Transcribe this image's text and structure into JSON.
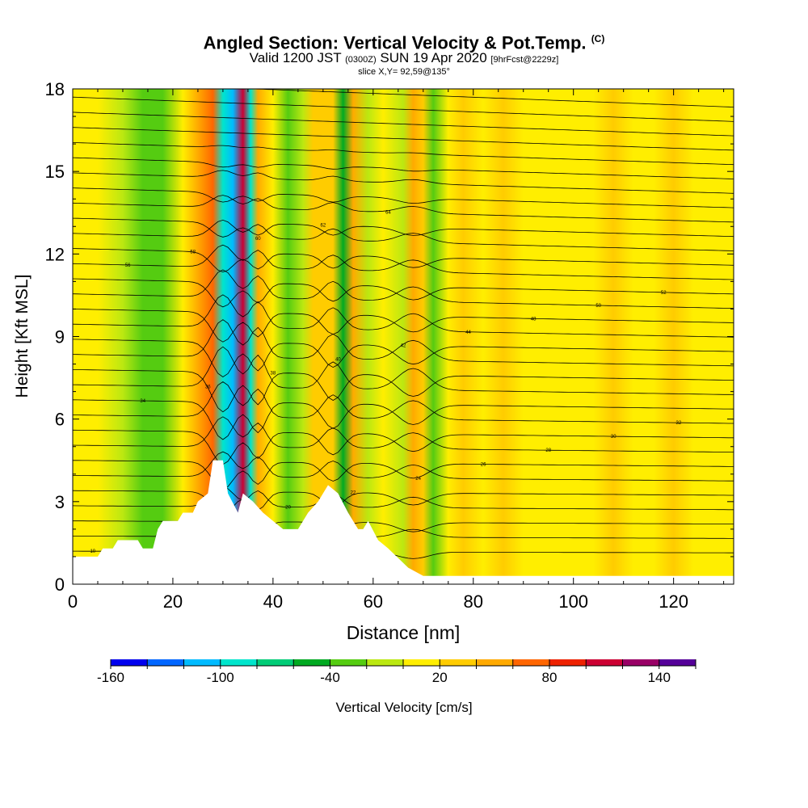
{
  "title": {
    "main": "Angled Section: Vertical Velocity & Pot.Temp.",
    "main_suffix": "(C)",
    "valid_prefix": "Valid 1200 JST",
    "valid_utc": "(0300Z)",
    "valid_date": "SUN 19 Apr 2020",
    "valid_fcst": "[9hrFcst@2229z]",
    "slice": "slice X,Y= 92,59@135°"
  },
  "chart_data": {
    "type": "heatmap",
    "xlabel": "Distance [nm]",
    "ylabel": "Height [Kft MSL]",
    "xlim": [
      0,
      132
    ],
    "ylim": [
      0,
      18
    ],
    "x_ticks": [
      "0",
      "20",
      "40",
      "60",
      "80",
      "100",
      "120"
    ],
    "y_ticks": [
      "0",
      "3",
      "6",
      "9",
      "12",
      "15",
      "18"
    ],
    "colorbar": {
      "label": "Vertical Velocity [cm/s]",
      "tick_labels": [
        "-160",
        "-100",
        "-40",
        "20",
        "80",
        "140"
      ],
      "tick_values": [
        -160,
        -100,
        -40,
        20,
        80,
        140
      ],
      "range": [
        -160,
        160
      ],
      "colors": [
        "#0000ee",
        "#0066ff",
        "#00bbff",
        "#00e5cc",
        "#00cc77",
        "#00aa22",
        "#55cc11",
        "#bbe811",
        "#ffee00",
        "#ffcc00",
        "#ffaa00",
        "#ff6600",
        "#ee2200",
        "#cc0033",
        "#990066",
        "#550099"
      ]
    },
    "vertical_velocity_bands": [
      {
        "x": 0,
        "value": 15
      },
      {
        "x": 5,
        "value": 5
      },
      {
        "x": 10,
        "value": -10
      },
      {
        "x": 14,
        "value": -25
      },
      {
        "x": 18,
        "value": -40
      },
      {
        "x": 22,
        "value": 10
      },
      {
        "x": 25,
        "value": 45
      },
      {
        "x": 28,
        "value": 70
      },
      {
        "x": 30,
        "value": -90
      },
      {
        "x": 32,
        "value": -120
      },
      {
        "x": 34,
        "value": 100
      },
      {
        "x": 35.5,
        "value": -100
      },
      {
        "x": 37,
        "value": 40
      },
      {
        "x": 40,
        "value": 10
      },
      {
        "x": 43,
        "value": -30
      },
      {
        "x": 46,
        "value": -15
      },
      {
        "x": 48,
        "value": 30
      },
      {
        "x": 52,
        "value": 20
      },
      {
        "x": 54,
        "value": -60
      },
      {
        "x": 56,
        "value": 45
      },
      {
        "x": 59,
        "value": -20
      },
      {
        "x": 62,
        "value": 15
      },
      {
        "x": 66,
        "value": -5
      },
      {
        "x": 68,
        "value": 55
      },
      {
        "x": 70,
        "value": 20
      },
      {
        "x": 72,
        "value": -35
      },
      {
        "x": 75,
        "value": 10
      },
      {
        "x": 78,
        "value": 25
      },
      {
        "x": 82,
        "value": 5
      },
      {
        "x": 86,
        "value": 20
      },
      {
        "x": 90,
        "value": 15
      },
      {
        "x": 95,
        "value": 10
      },
      {
        "x": 100,
        "value": 0
      },
      {
        "x": 104,
        "value": 15
      },
      {
        "x": 108,
        "value": 20
      },
      {
        "x": 112,
        "value": 5
      },
      {
        "x": 116,
        "value": 15
      },
      {
        "x": 120,
        "value": 35
      },
      {
        "x": 124,
        "value": 10
      },
      {
        "x": 128,
        "value": 0
      },
      {
        "x": 132,
        "value": 15
      }
    ],
    "terrain": [
      {
        "x": 0,
        "y": 1.0
      },
      {
        "x": 5,
        "y": 1.0
      },
      {
        "x": 6,
        "y": 1.3
      },
      {
        "x": 8,
        "y": 1.3
      },
      {
        "x": 9,
        "y": 1.6
      },
      {
        "x": 13,
        "y": 1.6
      },
      {
        "x": 14,
        "y": 1.3
      },
      {
        "x": 16,
        "y": 1.3
      },
      {
        "x": 17,
        "y": 2.0
      },
      {
        "x": 18,
        "y": 2.3
      },
      {
        "x": 21,
        "y": 2.3
      },
      {
        "x": 22,
        "y": 2.6
      },
      {
        "x": 24,
        "y": 2.6
      },
      {
        "x": 25,
        "y": 3.0
      },
      {
        "x": 27,
        "y": 3.3
      },
      {
        "x": 28,
        "y": 4.5
      },
      {
        "x": 30,
        "y": 4.5
      },
      {
        "x": 31,
        "y": 3.3
      },
      {
        "x": 33,
        "y": 2.6
      },
      {
        "x": 34,
        "y": 3.3
      },
      {
        "x": 36,
        "y": 3.0
      },
      {
        "x": 38,
        "y": 2.6
      },
      {
        "x": 40,
        "y": 2.3
      },
      {
        "x": 42,
        "y": 2.0
      },
      {
        "x": 45,
        "y": 2.0
      },
      {
        "x": 47,
        "y": 2.6
      },
      {
        "x": 49,
        "y": 3.0
      },
      {
        "x": 51,
        "y": 3.6
      },
      {
        "x": 53,
        "y": 3.3
      },
      {
        "x": 55,
        "y": 2.6
      },
      {
        "x": 57,
        "y": 2.0
      },
      {
        "x": 58,
        "y": 2.0
      },
      {
        "x": 59,
        "y": 2.3
      },
      {
        "x": 61,
        "y": 1.6
      },
      {
        "x": 63,
        "y": 1.3
      },
      {
        "x": 67,
        "y": 0.6
      },
      {
        "x": 70,
        "y": 0.3
      },
      {
        "x": 132,
        "y": 0.3
      }
    ],
    "theta_contours": {
      "count": 32,
      "labels": [
        "10",
        "14",
        "18",
        "20",
        "22",
        "24",
        "26",
        "28",
        "30",
        "32",
        "34",
        "36",
        "38",
        "40",
        "42",
        "44",
        "48",
        "50",
        "52",
        "56",
        "58",
        "60",
        "62",
        "64"
      ]
    }
  }
}
